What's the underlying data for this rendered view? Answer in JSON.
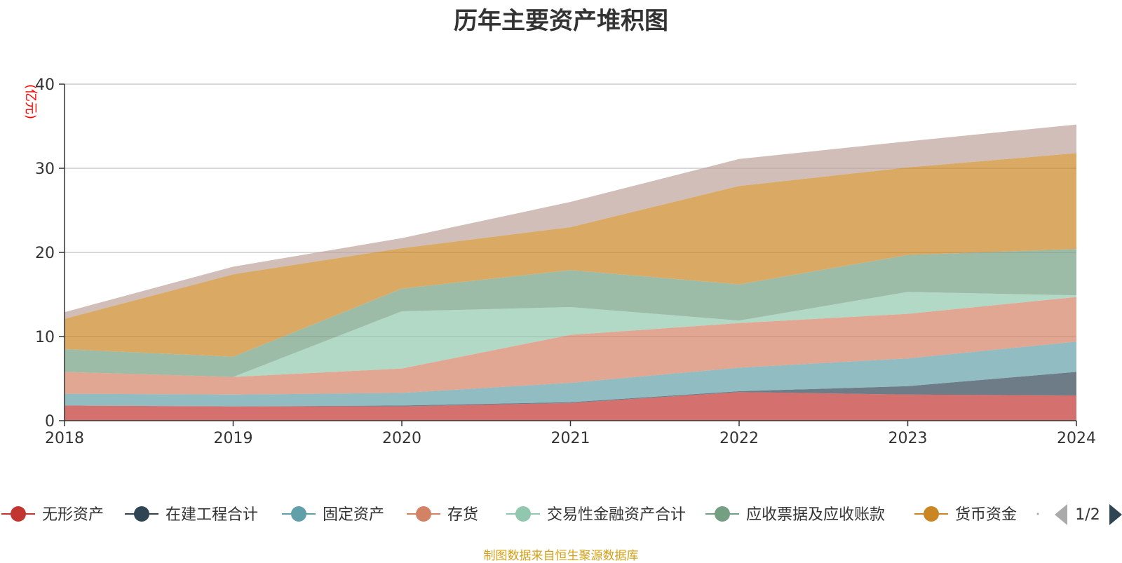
{
  "chart_data": {
    "type": "area",
    "stacked": true,
    "title": "历年主要资产堆积图",
    "unit_label": "(亿元)",
    "x": [
      "2018",
      "2019",
      "2020",
      "2021",
      "2022",
      "2023",
      "2024"
    ],
    "ylim": [
      0,
      40
    ],
    "yticks": [
      "0",
      "10",
      "20",
      "30",
      "40"
    ],
    "grid": true,
    "legend_position": "bottom",
    "legend_page": "1/2",
    "source_note": "制图数据来自恒生聚源数据库",
    "series": [
      {
        "name": "无形资产",
        "color": "#c23531",
        "values": [
          1.8,
          1.7,
          1.7,
          2.1,
          3.4,
          3.1,
          3.0
        ]
      },
      {
        "name": "在建工程合计",
        "color": "#2f4554",
        "values": [
          0.0,
          0.0,
          0.1,
          0.1,
          0.1,
          1.0,
          2.8
        ]
      },
      {
        "name": "固定资产",
        "color": "#61a0a8",
        "values": [
          1.4,
          1.4,
          1.5,
          2.3,
          2.8,
          3.3,
          3.6
        ]
      },
      {
        "name": "存货",
        "color": "#d48265",
        "values": [
          2.6,
          2.1,
          2.9,
          5.7,
          5.3,
          5.3,
          5.3
        ]
      },
      {
        "name": "交易性金融资产合计",
        "color": "#91c7ae",
        "values": [
          0.0,
          0.0,
          6.8,
          3.3,
          0.3,
          2.6,
          0.2
        ]
      },
      {
        "name": "应收票据及应收账款",
        "color": "#749f83",
        "values": [
          2.7,
          2.4,
          2.7,
          4.4,
          4.3,
          4.4,
          5.5
        ]
      },
      {
        "name": "货币资金",
        "color": "#ca8622",
        "values": [
          3.6,
          9.8,
          4.8,
          5.1,
          11.7,
          10.4,
          11.4
        ]
      },
      {
        "name": "",
        "color": "#bda29a",
        "values": [
          0.8,
          0.9,
          1.2,
          3.0,
          3.2,
          3.1,
          3.4
        ]
      }
    ]
  }
}
